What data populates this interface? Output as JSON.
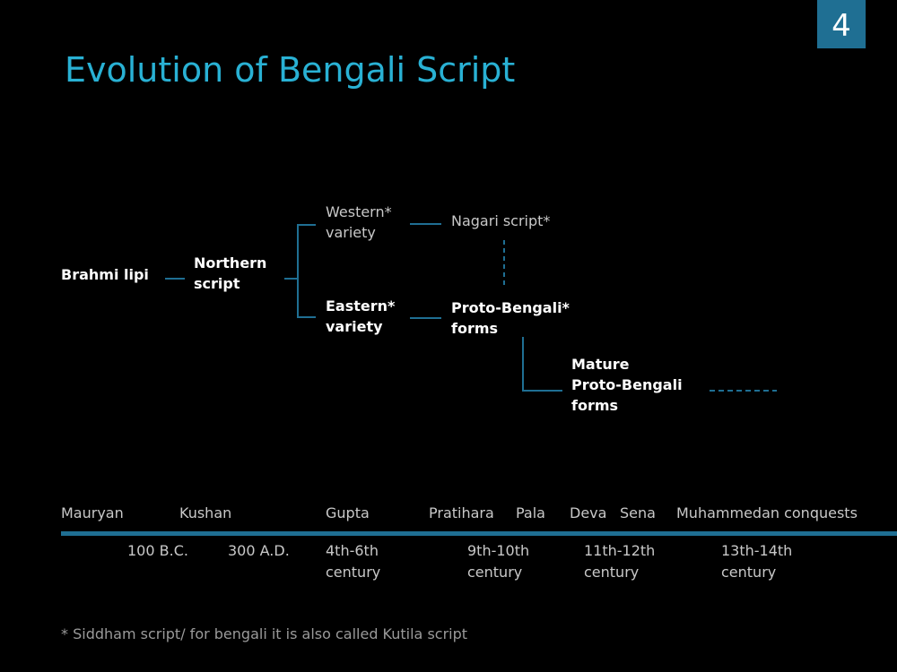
{
  "slide": {
    "page_number": "4",
    "title": "Evolution of Bengali Script"
  },
  "diagram": {
    "nodes": {
      "brahmi": "Brahmi lipi",
      "northern": "Northern\nscript",
      "western": "Western*\nvariety",
      "nagari": "Nagari script*",
      "eastern": "Eastern*\nvariety",
      "proto_bengali": "Proto-Bengali*\nforms",
      "mature": "Mature\nProto-Bengali\nforms"
    },
    "colors": {
      "connector": "#1f6f93",
      "title": "#29b1d4"
    }
  },
  "timeline": {
    "eras": [
      "Mauryan",
      "Kushan",
      "Gupta",
      "Pratihara",
      "Pala",
      "Deva",
      "Sena",
      "Muhammedan conquests"
    ],
    "dates": [
      "100 B.C.",
      "300 A.D.",
      "4th-6th\ncentury",
      "9th-10th\ncentury",
      "11th-12th\ncentury",
      "13th-14th\ncentury"
    ]
  },
  "footnote": "* Siddham script/ for bengali it is also called Kutila script"
}
